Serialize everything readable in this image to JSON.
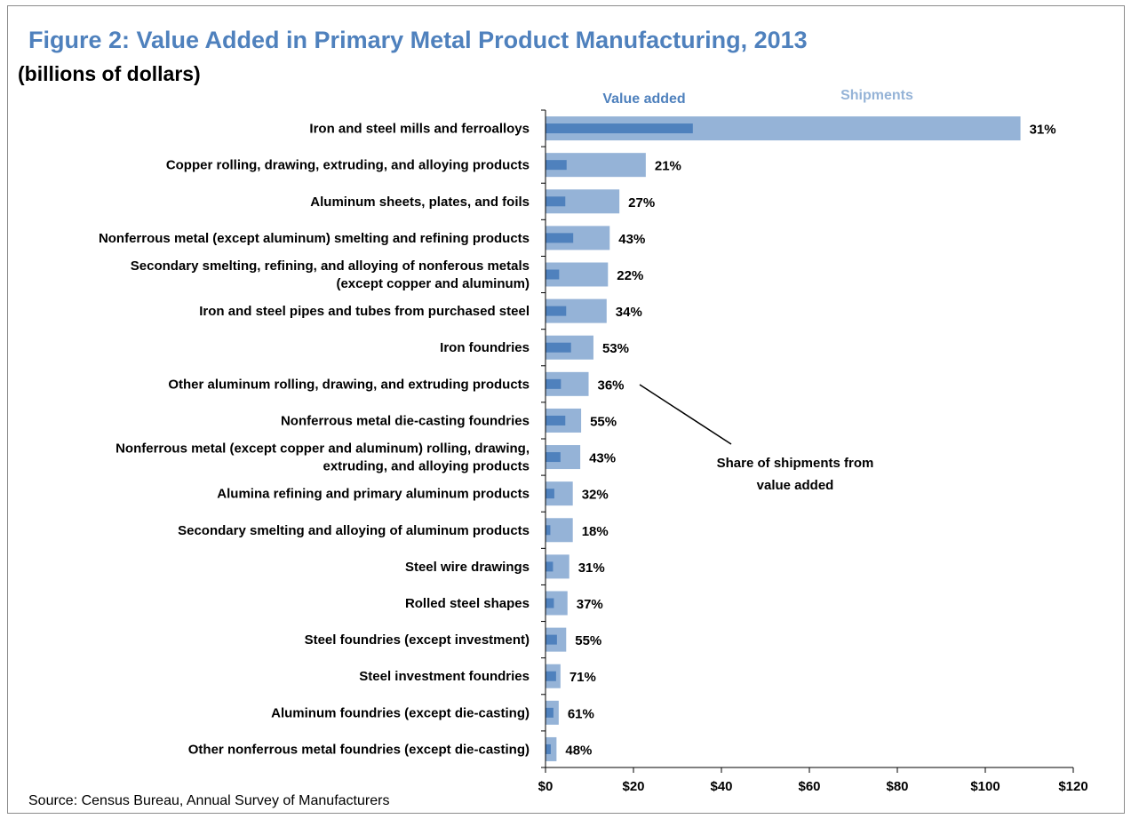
{
  "title": "Figure 2: Value Added in Primary Metal Product Manufacturing, 2013",
  "subtitle": "(billions of dollars)",
  "source": "Source: Census Bureau, Annual Survey of Manufacturers",
  "colors": {
    "value_added": "#4f81bd",
    "shipments": "#95b3d7",
    "axis": "#000000"
  },
  "chart_data": {
    "type": "bar",
    "orientation": "horizontal",
    "title": "Figure 2: Value Added in Primary Metal Product Manufacturing, 2013",
    "subtitle": "(billions of dollars)",
    "legend": [
      "Value added",
      "Shipments"
    ],
    "legend_position": "top",
    "categories": [
      [
        "Iron and steel mills and ferroalloys"
      ],
      [
        "Copper rolling, drawing, extruding, and alloying products"
      ],
      [
        "Aluminum sheets, plates, and foils"
      ],
      [
        "Nonferrous metal (except aluminum) smelting and refining products"
      ],
      [
        "Secondary smelting, refining, and alloying of nonferous metals",
        "(except copper and aluminum)"
      ],
      [
        "Iron and steel pipes and tubes from purchased steel"
      ],
      [
        "Iron foundries"
      ],
      [
        "Other aluminum rolling, drawing, and extruding products"
      ],
      [
        "Nonferrous metal die-casting foundries"
      ],
      [
        "Nonferrous metal (except copper and aluminum) rolling, drawing,",
        "extruding, and alloying products"
      ],
      [
        "Alumina refining and primary aluminum products"
      ],
      [
        "Secondary smelting and alloying of aluminum products"
      ],
      [
        "Steel wire drawings"
      ],
      [
        "Rolled steel shapes"
      ],
      [
        "Steel foundries (except investment)"
      ],
      [
        "Steel investment foundries"
      ],
      [
        "Aluminum foundries (except die-casting)"
      ],
      [
        "Other nonferrous metal foundries (except die-casting)"
      ]
    ],
    "series": [
      {
        "name": "Shipments",
        "values": [
          108,
          22.8,
          16.8,
          14.6,
          14.2,
          13.9,
          10.9,
          9.8,
          8.1,
          7.9,
          6.2,
          6.2,
          5.4,
          5.0,
          4.7,
          3.4,
          3.0,
          2.5
        ]
      },
      {
        "name": "Value added",
        "values": [
          33.5,
          4.8,
          4.5,
          6.3,
          3.1,
          4.7,
          5.8,
          3.5,
          4.5,
          3.4,
          2.0,
          1.1,
          1.7,
          1.9,
          2.6,
          2.4,
          1.8,
          1.2
        ]
      }
    ],
    "data_labels": [
      "31%",
      "21%",
      "27%",
      "43%",
      "22%",
      "34%",
      "53%",
      "36%",
      "55%",
      "43%",
      "32%",
      "18%",
      "31%",
      "37%",
      "55%",
      "71%",
      "61%",
      "48%"
    ],
    "x_ticks": [
      "$0",
      "$20",
      "$40",
      "$60",
      "$80",
      "$100",
      "$120"
    ],
    "xlim": [
      0,
      120
    ],
    "grid": false,
    "annotation": [
      "Share of shipments from",
      "value added"
    ]
  }
}
